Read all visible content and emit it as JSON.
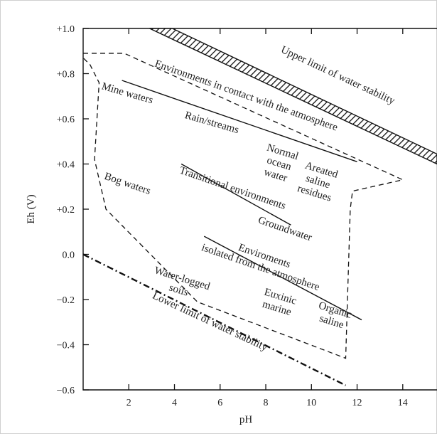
{
  "chart_data": {
    "type": "diagram",
    "xlabel": "pH",
    "ylabel": "Eh (V)",
    "xlim": [
      0,
      15.5
    ],
    "ylim": [
      -0.6,
      1.0
    ],
    "x_ticks": [
      {
        "v": 2,
        "label": "2"
      },
      {
        "v": 4,
        "label": "4"
      },
      {
        "v": 6,
        "label": "6"
      },
      {
        "v": 8,
        "label": "8"
      },
      {
        "v": 10,
        "label": "10"
      },
      {
        "v": 12,
        "label": "12"
      },
      {
        "v": 14,
        "label": "14"
      }
    ],
    "y_ticks": [
      {
        "v": 1.0,
        "label": "+1.0"
      },
      {
        "v": 0.8,
        "label": "+0.8"
      },
      {
        "v": 0.6,
        "label": "+0.6"
      },
      {
        "v": 0.4,
        "label": "+0.4"
      },
      {
        "v": 0.2,
        "label": "+0.2"
      },
      {
        "v": 0.0,
        "label": "0.0"
      },
      {
        "v": -0.2,
        "label": "−0.2"
      },
      {
        "v": -0.4,
        "label": "−0.4"
      },
      {
        "v": -0.6,
        "label": "−0.6"
      }
    ],
    "boundaries": {
      "upper_limit": {
        "label": "Upper limit of water stability",
        "x": [
          3.1,
          15.5
        ],
        "y": [
          1.0,
          0.4
        ]
      },
      "lower_limit": {
        "label": "Lower limit of water stability",
        "x": [
          0.0,
          11.5
        ],
        "y": [
          0.0,
          -0.58
        ]
      },
      "natural_envelope": {
        "x": [
          0.0,
          1.8,
          14.0,
          11.8,
          11.7,
          11.5,
          5.0,
          1.0,
          0.5,
          0.7,
          0.3,
          0.0
        ],
        "y": [
          0.89,
          0.89,
          0.33,
          0.28,
          0.2,
          -0.46,
          -0.21,
          0.2,
          0.42,
          0.76,
          0.84,
          0.87
        ]
      },
      "dividers": [
        {
          "x": [
            1.7,
            12.0
          ],
          "y": [
            0.77,
            0.41
          ]
        },
        {
          "x": [
            4.3,
            9.1
          ],
          "y": [
            0.4,
            0.13
          ]
        },
        {
          "x": [
            5.3,
            12.2
          ],
          "y": [
            0.08,
            -0.29
          ]
        }
      ]
    },
    "regions": [
      {
        "lines": [
          "Environments in contact with the atmosphere"
        ],
        "x": 7.1,
        "y": 0.69,
        "angle": 19.5
      },
      {
        "lines": [
          "Mine waters"
        ],
        "x": 1.9,
        "y": 0.7,
        "angle": 16
      },
      {
        "lines": [
          "Rain/streams"
        ],
        "x": 5.6,
        "y": 0.57,
        "angle": 16
      },
      {
        "lines": [
          "Normal",
          "ocean",
          "water"
        ],
        "x": 8.7,
        "y": 0.44,
        "angle": 17
      },
      {
        "lines": [
          "Areated",
          "saline",
          "residues"
        ],
        "x": 10.4,
        "y": 0.36,
        "angle": 17
      },
      {
        "lines": [
          "Transitional environments"
        ],
        "x": 6.5,
        "y": 0.28,
        "angle": 19
      },
      {
        "lines": [
          "Bog waters"
        ],
        "x": 1.9,
        "y": 0.3,
        "angle": 19
      },
      {
        "lines": [
          "Groundwater"
        ],
        "x": 8.8,
        "y": 0.1,
        "angle": 19
      },
      {
        "lines": [
          "Enviroments",
          "isolated from the atmosphere"
        ],
        "x": 7.9,
        "y": -0.02,
        "angle": 19
      },
      {
        "lines": [
          "Water-logged",
          "soils"
        ],
        "x": 4.3,
        "y": -0.12,
        "angle": 17
      },
      {
        "lines": [
          "Euxinic",
          "marine"
        ],
        "x": 8.6,
        "y": -0.2,
        "angle": 17
      },
      {
        "lines": [
          "Organic",
          "saline"
        ],
        "x": 11.0,
        "y": -0.26,
        "angle": 17
      }
    ]
  }
}
